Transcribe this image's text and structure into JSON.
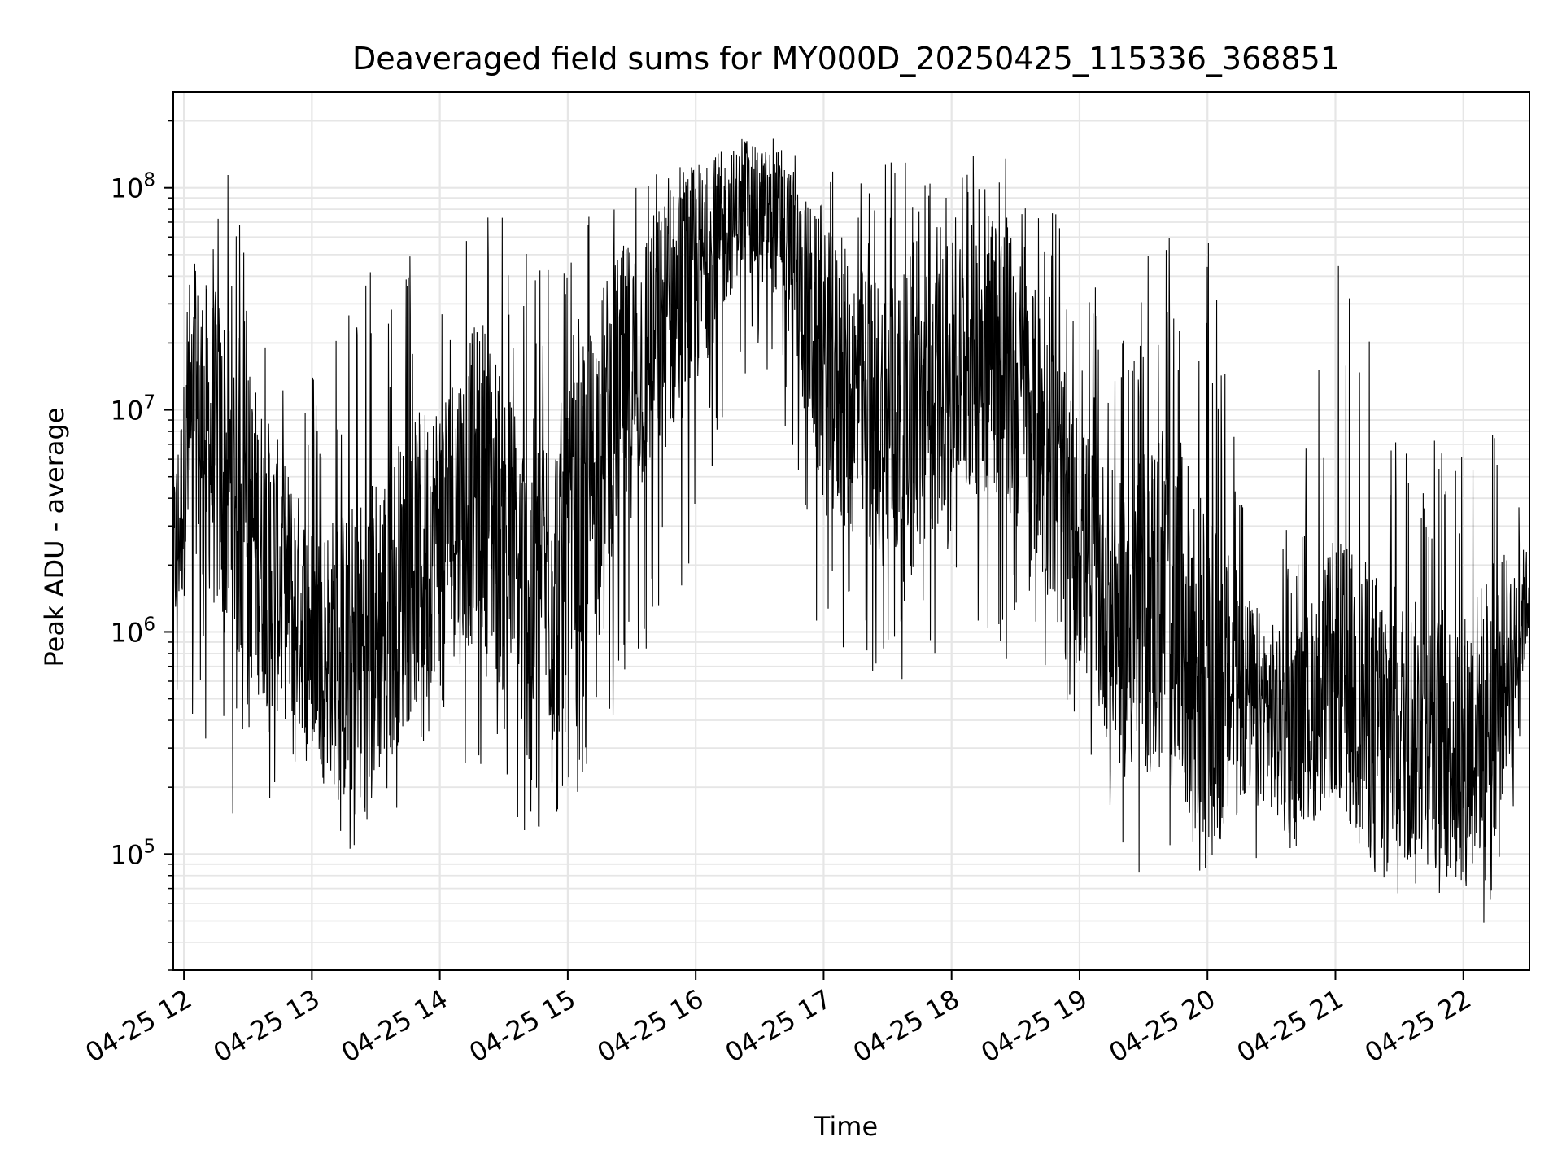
{
  "chart_data": {
    "type": "line",
    "title": "Deaveraged field sums for MY000D_20250425_115336_368851",
    "xlabel": "Time",
    "ylabel": "Peak ADU - average",
    "y_scale": "log",
    "grid": true,
    "legend": "none",
    "line_color": "#000000",
    "xlim": [
      "2025-04-25 11:55",
      "2025-04-25 22:31"
    ],
    "ylim": [
      30000,
      270000000
    ],
    "x_ticks": [
      {
        "value": "2025-04-25 12:00",
        "label": "04-25 12"
      },
      {
        "value": "2025-04-25 13:00",
        "label": "04-25 13"
      },
      {
        "value": "2025-04-25 14:00",
        "label": "04-25 14"
      },
      {
        "value": "2025-04-25 15:00",
        "label": "04-25 15"
      },
      {
        "value": "2025-04-25 16:00",
        "label": "04-25 16"
      },
      {
        "value": "2025-04-25 17:00",
        "label": "04-25 17"
      },
      {
        "value": "2025-04-25 18:00",
        "label": "04-25 18"
      },
      {
        "value": "2025-04-25 19:00",
        "label": "04-25 19"
      },
      {
        "value": "2025-04-25 20:00",
        "label": "04-25 20"
      },
      {
        "value": "2025-04-25 21:00",
        "label": "04-25 21"
      },
      {
        "value": "2025-04-25 22:00",
        "label": "04-25 22"
      }
    ],
    "y_ticks": [
      {
        "value": 100000,
        "base": "10",
        "exp": "5"
      },
      {
        "value": 1000000,
        "base": "10",
        "exp": "6"
      },
      {
        "value": 10000000,
        "base": "10",
        "exp": "7"
      },
      {
        "value": 100000000,
        "base": "10",
        "exp": "8"
      }
    ],
    "series": [
      {
        "values": [
          {
            "x": "2025-04-25 11:55",
            "low": 350000,
            "high": 10000000,
            "typical": 2000000
          },
          {
            "x": "2025-04-25 12:05",
            "low": 400000,
            "high": 80000000,
            "typical": 10000000
          },
          {
            "x": "2025-04-25 12:20",
            "low": 150000,
            "high": 120000000,
            "typical": 5000000
          },
          {
            "x": "2025-04-25 12:40",
            "low": 140000,
            "high": 35000000,
            "typical": 2000000
          },
          {
            "x": "2025-04-25 13:00",
            "low": 250000,
            "high": 15000000,
            "typical": 1000000
          },
          {
            "x": "2025-04-25 13:20",
            "low": 80000,
            "high": 45000000,
            "typical": 700000
          },
          {
            "x": "2025-04-25 13:40",
            "low": 150000,
            "high": 50000000,
            "typical": 1500000
          },
          {
            "x": "2025-04-25 14:00",
            "low": 300000,
            "high": 60000000,
            "typical": 3000000
          },
          {
            "x": "2025-04-25 14:20",
            "low": 180000,
            "high": 90000000,
            "typical": 5000000
          },
          {
            "x": "2025-04-25 14:40",
            "low": 100000,
            "high": 60000000,
            "typical": 1500000
          },
          {
            "x": "2025-04-25 15:00",
            "low": 150000,
            "high": 90000000,
            "typical": 2000000
          },
          {
            "x": "2025-04-25 15:20",
            "low": 350000,
            "high": 100000000,
            "typical": 10000000
          },
          {
            "x": "2025-04-25 15:40",
            "low": 800000,
            "high": 120000000,
            "typical": 20000000
          },
          {
            "x": "2025-04-25 16:00",
            "low": 2000000,
            "high": 160000000,
            "typical": 40000000
          },
          {
            "x": "2025-04-25 16:20",
            "low": 15000000,
            "high": 170000000,
            "typical": 80000000
          },
          {
            "x": "2025-04-25 16:40",
            "low": 10000000,
            "high": 170000000,
            "typical": 70000000
          },
          {
            "x": "2025-04-25 17:00",
            "low": 700000,
            "high": 160000000,
            "typical": 15000000
          },
          {
            "x": "2025-04-25 17:20",
            "low": 700000,
            "high": 150000000,
            "typical": 10000000
          },
          {
            "x": "2025-04-25 17:40",
            "low": 400000,
            "high": 150000000,
            "typical": 8000000
          },
          {
            "x": "2025-04-25 18:00",
            "low": 1200000,
            "high": 150000000,
            "typical": 15000000
          },
          {
            "x": "2025-04-25 18:20",
            "low": 500000,
            "high": 150000000,
            "typical": 20000000
          },
          {
            "x": "2025-04-25 18:40",
            "low": 700000,
            "high": 140000000,
            "typical": 8000000
          },
          {
            "x": "2025-04-25 19:00",
            "low": 400000,
            "high": 50000000,
            "typical": 2500000
          },
          {
            "x": "2025-04-25 19:20",
            "low": 80000,
            "high": 20000000,
            "typical": 1000000
          },
          {
            "x": "2025-04-25 19:40",
            "low": 80000,
            "high": 100000000,
            "typical": 1500000
          },
          {
            "x": "2025-04-25 20:00",
            "low": 80000,
            "high": 60000000,
            "typical": 600000
          },
          {
            "x": "2025-04-25 20:20",
            "low": 90000,
            "high": 4000000,
            "typical": 500000
          },
          {
            "x": "2025-04-25 20:40",
            "low": 100000,
            "high": 3000000,
            "typical": 350000
          },
          {
            "x": "2025-04-25 21:00",
            "low": 200000,
            "high": 50000000,
            "typical": 600000
          },
          {
            "x": "2025-04-25 21:20",
            "low": 70000,
            "high": 20000000,
            "typical": 400000
          },
          {
            "x": "2025-04-25 21:40",
            "low": 60000,
            "high": 8000000,
            "typical": 350000
          },
          {
            "x": "2025-04-25 22:00",
            "low": 45000,
            "high": 8000000,
            "typical": 300000
          },
          {
            "x": "2025-04-25 22:15",
            "low": 45000,
            "high": 10000000,
            "typical": 500000
          },
          {
            "x": "2025-04-25 22:31",
            "low": 500000,
            "high": 3000000,
            "typical": 1500000
          }
        ]
      }
    ]
  }
}
